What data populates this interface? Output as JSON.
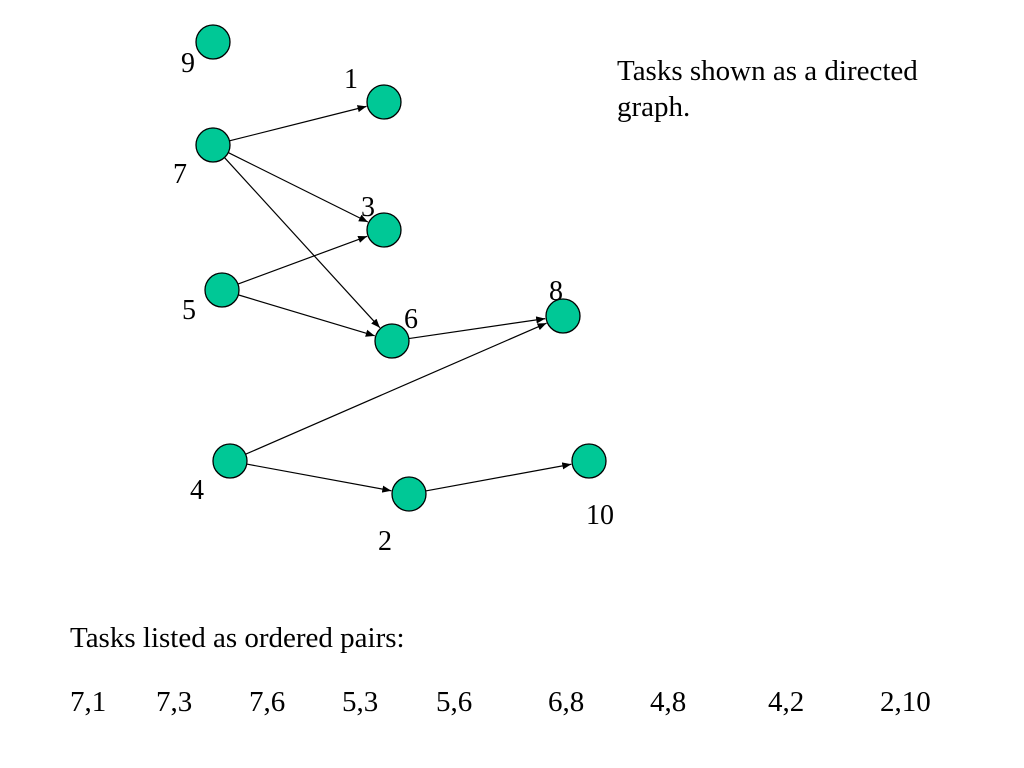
{
  "caption": "Tasks shown as a directed graph.",
  "pairs_title": "Tasks listed as ordered pairs:",
  "node_color": "#00C896",
  "nodes": [
    {
      "id": "9",
      "label": "9"
    },
    {
      "id": "1",
      "label": "1"
    },
    {
      "id": "7",
      "label": "7"
    },
    {
      "id": "3",
      "label": "3"
    },
    {
      "id": "5",
      "label": "5"
    },
    {
      "id": "6",
      "label": "6"
    },
    {
      "id": "8",
      "label": "8"
    },
    {
      "id": "4",
      "label": "4"
    },
    {
      "id": "2",
      "label": "2"
    },
    {
      "id": "10",
      "label": "10"
    }
  ],
  "edges": [
    {
      "from": "7",
      "to": "1"
    },
    {
      "from": "7",
      "to": "3"
    },
    {
      "from": "7",
      "to": "6"
    },
    {
      "from": "5",
      "to": "3"
    },
    {
      "from": "5",
      "to": "6"
    },
    {
      "from": "6",
      "to": "8"
    },
    {
      "from": "4",
      "to": "8"
    },
    {
      "from": "4",
      "to": "2"
    },
    {
      "from": "2",
      "to": "10"
    }
  ],
  "pairs": [
    "7,1",
    "7,3",
    "7,6",
    "5,3",
    "5,6",
    "6,8",
    "4,8",
    "4,2",
    "2,10"
  ]
}
